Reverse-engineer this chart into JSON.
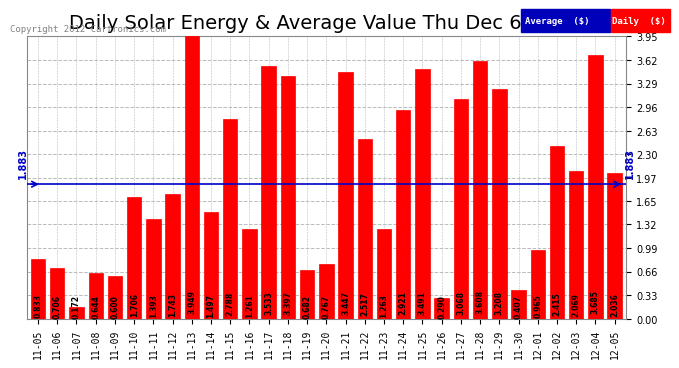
{
  "title": "Daily Solar Energy & Average Value Thu Dec 6 07:25",
  "copyright": "Copyright 2012 Cartronics.com",
  "categories": [
    "11-05",
    "11-06",
    "11-07",
    "11-08",
    "11-09",
    "11-10",
    "11-11",
    "11-12",
    "11-13",
    "11-14",
    "11-15",
    "11-16",
    "11-17",
    "11-18",
    "11-19",
    "11-20",
    "11-21",
    "11-22",
    "11-23",
    "11-24",
    "11-25",
    "11-26",
    "11-27",
    "11-28",
    "11-29",
    "11-30",
    "12-01",
    "12-02",
    "12-03",
    "12-04",
    "12-05"
  ],
  "values": [
    0.833,
    0.706,
    0.172,
    0.644,
    0.6,
    1.706,
    1.393,
    1.743,
    3.949,
    1.497,
    2.788,
    1.261,
    3.533,
    3.397,
    0.682,
    0.767,
    3.447,
    2.517,
    1.263,
    2.921,
    3.491,
    0.29,
    3.068,
    3.608,
    3.208,
    0.407,
    0.965,
    2.415,
    2.069,
    3.685,
    2.036
  ],
  "average": 1.883,
  "bar_color": "#ff0000",
  "bar_edge_color": "#ff0000",
  "avg_line_color": "#0000cc",
  "background_color": "#ffffff",
  "plot_bg_color": "#ffffff",
  "grid_color": "#bbbbbb",
  "ylim": [
    0.0,
    3.95
  ],
  "yticks": [
    0.0,
    0.33,
    0.66,
    0.99,
    1.32,
    1.65,
    1.97,
    2.3,
    2.63,
    2.96,
    3.29,
    3.62,
    3.95
  ],
  "title_fontsize": 14,
  "bar_label_fontsize": 5.5,
  "tick_fontsize": 7,
  "legend_avg_color": "#0000bb",
  "legend_daily_color": "#ff0000",
  "legend_bg_color": "#0000bb"
}
